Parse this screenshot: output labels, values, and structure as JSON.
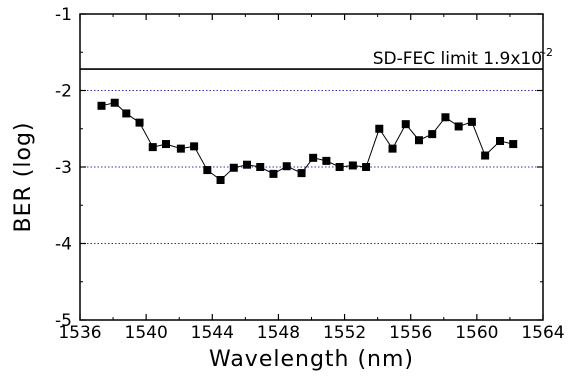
{
  "chart_data": {
    "type": "scatter",
    "xlabel": "Wavelength (nm)",
    "ylabel": "BER (log)",
    "xlim": [
      1536,
      1564
    ],
    "ylim": [
      -5,
      -1
    ],
    "x_ticks": [
      1536,
      1540,
      1544,
      1548,
      1552,
      1556,
      1560,
      1564
    ],
    "x_tick_labels": [
      "1536",
      "1540",
      "1544",
      "1548",
      "1552",
      "1556",
      "1560",
      "1564"
    ],
    "y_ticks": [
      -5,
      -4,
      -3,
      -2,
      -1
    ],
    "y_tick_labels": [
      "-5",
      "-4",
      "-3",
      "-2",
      "-1"
    ],
    "grid": "dotted horizontal at -2, -3, -4",
    "marker": "filled-square",
    "marker_color": "#000000",
    "grid_color": "#3333aa",
    "threshold": {
      "value": -1.72,
      "label_main": "SD-FEC limit 1.9x10",
      "label_exp": "-2"
    },
    "x": [
      1537.3,
      1538.1,
      1538.8,
      1539.6,
      1540.4,
      1541.2,
      1542.1,
      1542.9,
      1543.7,
      1544.5,
      1545.3,
      1546.1,
      1546.9,
      1547.7,
      1548.5,
      1549.4,
      1550.1,
      1550.9,
      1551.7,
      1552.5,
      1553.3,
      1554.1,
      1554.9,
      1555.7,
      1556.5,
      1557.3,
      1558.1,
      1558.9,
      1559.7,
      1560.5,
      1561.4,
      1562.2
    ],
    "y": [
      -2.2,
      -2.16,
      -2.3,
      -2.42,
      -2.74,
      -2.7,
      -2.76,
      -2.73,
      -3.04,
      -3.17,
      -3.01,
      -2.97,
      -3.0,
      -3.09,
      -2.99,
      -3.08,
      -2.88,
      -2.92,
      -3.0,
      -2.98,
      -3.0,
      -2.5,
      -2.76,
      -2.44,
      -2.65,
      -2.57,
      -2.35,
      -2.47,
      -2.41,
      -2.85,
      -2.66,
      -2.7
    ]
  }
}
